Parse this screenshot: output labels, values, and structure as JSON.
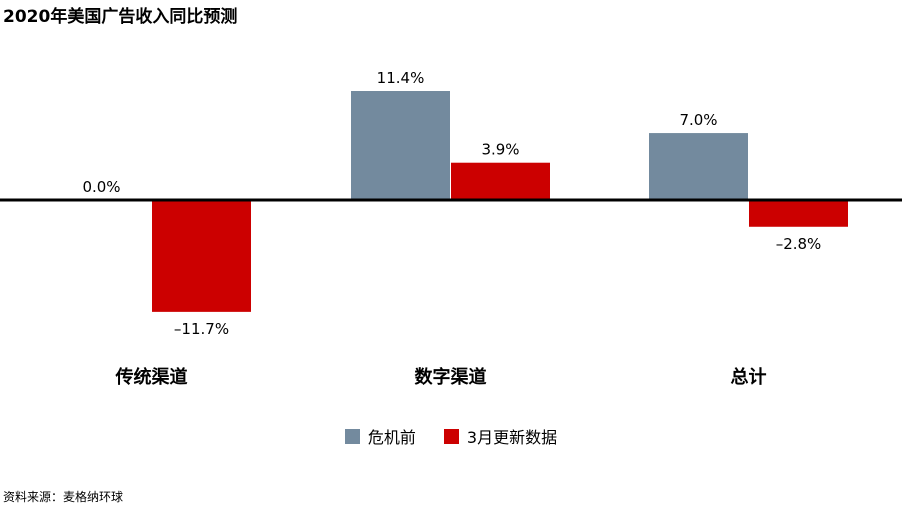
{
  "title": "2020年美国广告收入同比预测",
  "source": "资料来源：麦格纳环球",
  "colors": {
    "pre_crisis": "#738a9e",
    "march_update": "#cc0000",
    "baseline": "#000000"
  },
  "chart_data": {
    "type": "bar",
    "categories": [
      "传统渠道",
      "数字渠道",
      "总计"
    ],
    "series": [
      {
        "name": "危机前",
        "values": [
          0.0,
          11.4,
          7.0
        ],
        "labels": [
          "0.0%",
          "11.4%",
          "7.0%"
        ]
      },
      {
        "name": "3月更新数据",
        "values": [
          -11.7,
          3.9,
          -2.8
        ],
        "labels": [
          "–11.7%",
          "3.9%",
          "–2.8%"
        ]
      }
    ],
    "ylim": [
      -11.7,
      11.4
    ],
    "legend": "bottom",
    "grid": false
  }
}
